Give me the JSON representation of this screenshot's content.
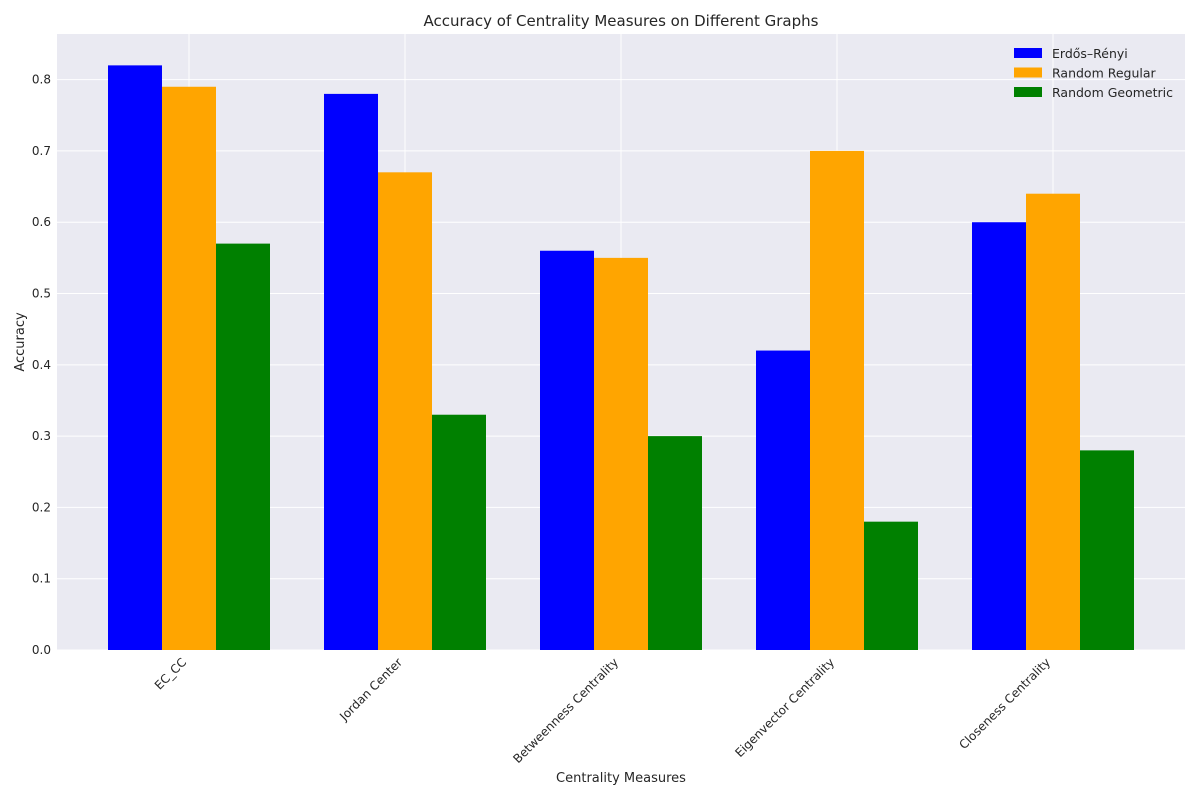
{
  "chart_data": {
    "type": "bar",
    "title": "Accuracy of Centrality Measures on Different Graphs",
    "xlabel": "Centrality Measures",
    "ylabel": "Accuracy",
    "categories": [
      "EC_CC",
      "Jordan Center",
      "Betweenness Centrality",
      "Eigenvector Centrality",
      "Closeness Centrality"
    ],
    "series": [
      {
        "name": "Erdős–Rényi",
        "color": "#0000ff",
        "values": [
          0.82,
          0.78,
          0.56,
          0.42,
          0.6
        ]
      },
      {
        "name": "Random Regular",
        "color": "#ffa500",
        "values": [
          0.79,
          0.67,
          0.55,
          0.7,
          0.64
        ]
      },
      {
        "name": "Random Geometric",
        "color": "#008000",
        "values": [
          0.57,
          0.33,
          0.3,
          0.18,
          0.28
        ]
      }
    ],
    "ylim": [
      0,
      0.864
    ],
    "yticks": [
      "0.0",
      "0.1",
      "0.2",
      "0.3",
      "0.4",
      "0.5",
      "0.6",
      "0.7",
      "0.8"
    ],
    "grid": true,
    "legend_position": "top-right",
    "background_color": "#eaeaf2",
    "grid_color": "#ffffff"
  }
}
